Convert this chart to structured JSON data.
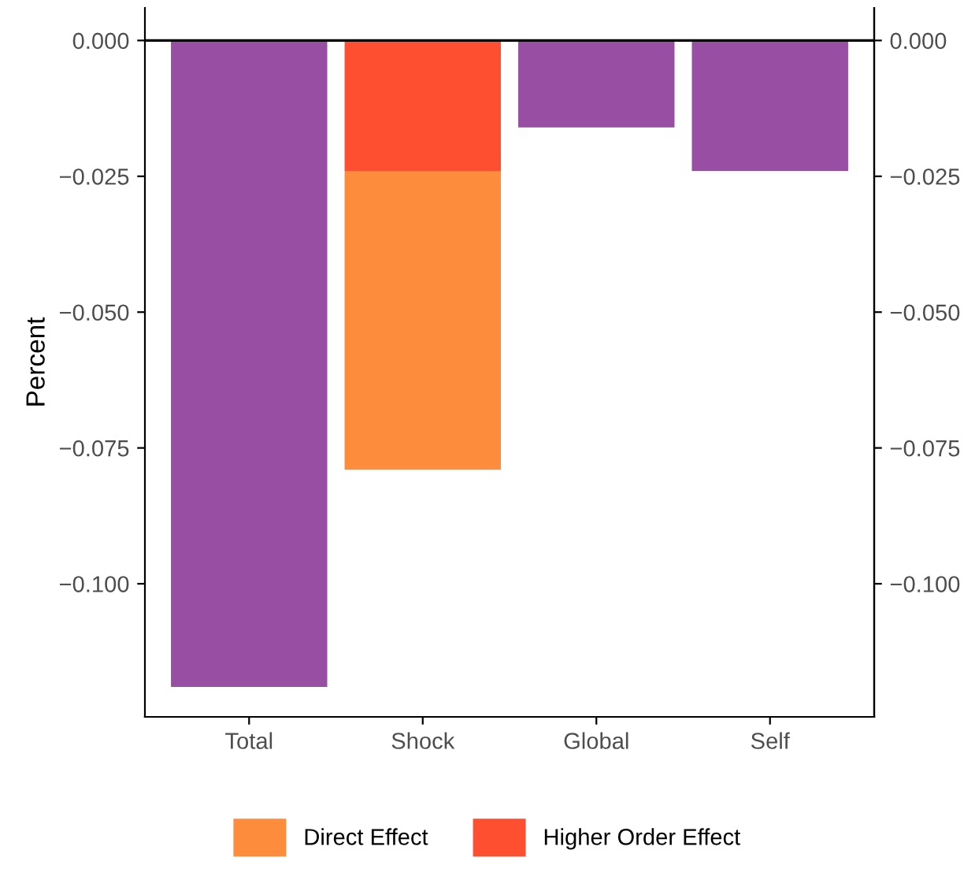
{
  "chart_data": {
    "type": "bar",
    "stacked": true,
    "ylabel": "Percent",
    "categories": [
      "Total",
      "Shock",
      "Global",
      "Self"
    ],
    "series": [
      {
        "color": "#984ea3",
        "values": [
          -0.119,
          null,
          -0.016,
          -0.024
        ]
      },
      {
        "name": "Higher Order Effect",
        "color": "#fe5030",
        "values": [
          null,
          -0.024,
          null,
          null
        ]
      },
      {
        "name": "Direct Effect",
        "color": "#fe8c3d",
        "values": [
          null,
          -0.055,
          null,
          null
        ]
      }
    ],
    "ylim": [
      -0.1245,
      0.006
    ],
    "yticks": [
      {
        "value": 0,
        "label": "0.000"
      },
      {
        "value": -0.025,
        "label": "−0.025"
      },
      {
        "value": -0.05,
        "label": "−0.050"
      },
      {
        "value": -0.075,
        "label": "−0.075"
      },
      {
        "value": -0.1,
        "label": "−0.100"
      }
    ],
    "y2lim": [
      -0.1245,
      0.006
    ],
    "y2ticks": [
      {
        "value": 0,
        "label": "0.000"
      },
      {
        "value": -0.025,
        "label": "−0.025"
      },
      {
        "value": -0.05,
        "label": "−0.050"
      },
      {
        "value": -0.075,
        "label": "−0.075"
      },
      {
        "value": -0.1,
        "label": "−0.100"
      }
    ],
    "ref_lines": [
      {
        "axis": "y",
        "value": 0,
        "color": "#000000"
      }
    ],
    "legend": "bottom",
    "grid": false
  }
}
